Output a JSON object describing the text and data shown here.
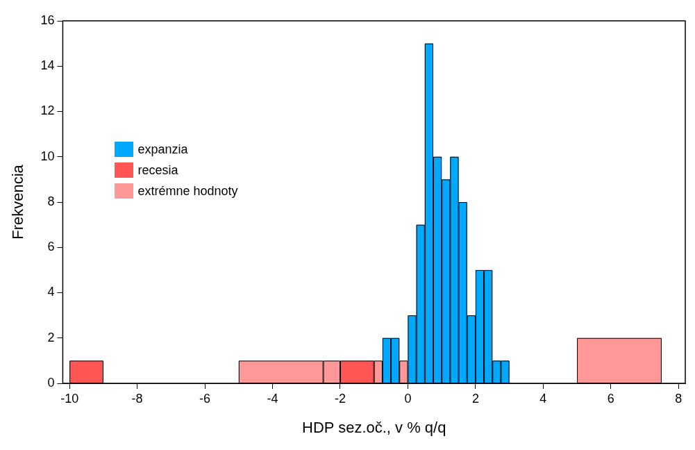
{
  "chart_data": {
    "type": "histogram",
    "xlabel": "HDP sez.oč., v % q/q",
    "ylabel": "Frekvencia",
    "xlim": [
      -10.2,
      8.2
    ],
    "xticks": [
      -10,
      -8,
      -6,
      -4,
      -2,
      0,
      2,
      4,
      6,
      8
    ],
    "ylim": [
      0,
      16
    ],
    "yticks": [
      0,
      2,
      4,
      6,
      8,
      10,
      12,
      14,
      16
    ],
    "legend": "top left",
    "bins": [
      -10,
      -9,
      -5,
      -2.5,
      -2,
      -1,
      -0.75,
      -0.5,
      -0.25,
      0,
      0.25,
      0.5,
      0.75,
      1,
      1.25,
      1.5,
      1.75,
      2,
      2.25,
      2.5,
      2.75,
      3,
      5,
      7.5
    ],
    "series": [
      {
        "name": "expanzia",
        "color": "#00a8ff",
        "values": [
          null,
          null,
          null,
          null,
          null,
          null,
          2,
          2,
          null,
          3,
          7,
          15,
          10,
          9,
          10,
          8,
          3,
          5,
          5,
          1,
          1,
          null,
          null
        ]
      },
      {
        "name": "recesia",
        "color": "#ff5555",
        "values": [
          1,
          null,
          null,
          null,
          1,
          null,
          null,
          null,
          null,
          null,
          null,
          null,
          null,
          null,
          null,
          null,
          null,
          null,
          null,
          null,
          null,
          null,
          null
        ]
      },
      {
        "name": "extrémne hodnoty",
        "color": "#ff9999",
        "values": [
          null,
          null,
          1,
          1,
          null,
          1,
          null,
          null,
          1,
          null,
          null,
          null,
          null,
          null,
          null,
          null,
          null,
          null,
          null,
          null,
          null,
          null,
          2
        ]
      }
    ]
  }
}
